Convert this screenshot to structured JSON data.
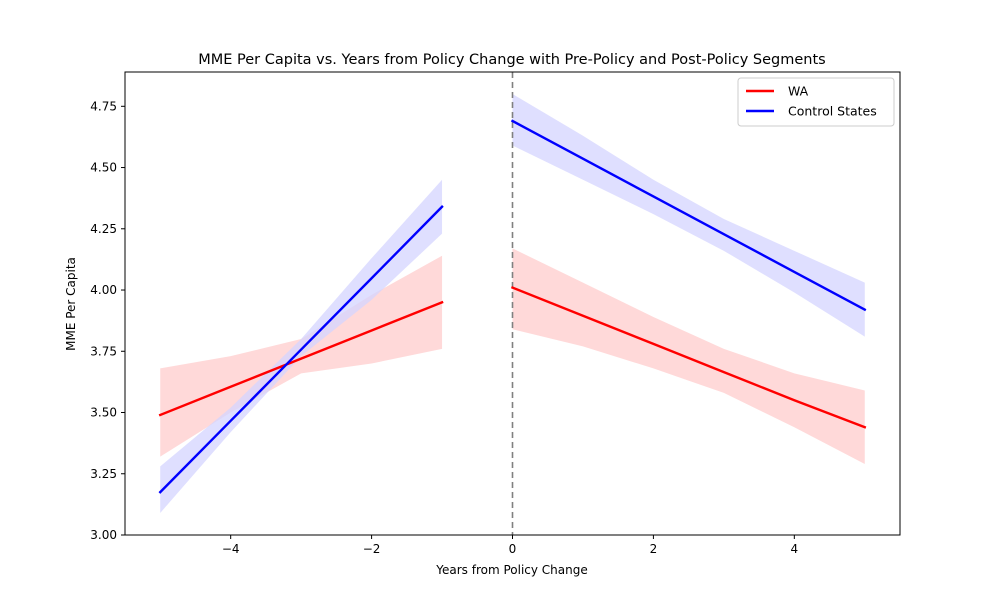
{
  "chart_data": {
    "type": "line",
    "title": "MME Per Capita vs. Years from Policy Change with Pre-Policy and Post-Policy Segments",
    "xlabel": "Years from Policy Change",
    "ylabel": "MME Per Capita",
    "xlim": [
      -5.5,
      5.5
    ],
    "ylim": [
      3.0,
      4.89
    ],
    "xticks": [
      -4,
      -2,
      0,
      2,
      4
    ],
    "xtick_labels": [
      "−4",
      "−2",
      "0",
      "2",
      "4"
    ],
    "yticks": [
      3.0,
      3.25,
      3.5,
      3.75,
      4.0,
      4.25,
      4.5,
      4.75
    ],
    "ytick_labels": [
      "3.00",
      "3.25",
      "3.50",
      "3.75",
      "4.00",
      "4.25",
      "4.50",
      "4.75"
    ],
    "grid": false,
    "legend_position": "top-right",
    "policy_line_x": 0,
    "series": [
      {
        "name": "WA",
        "color": "#ff0000",
        "band_color": "#ffcccc",
        "segments": [
          {
            "label": "pre-policy",
            "x": [
              -5,
              -4,
              -3,
              -2,
              -1
            ],
            "y": [
              3.49,
              3.605,
              3.72,
              3.835,
              3.95
            ],
            "lower": [
              3.32,
              3.5,
              3.66,
              3.7,
              3.76
            ],
            "upper": [
              3.68,
              3.73,
              3.8,
              3.98,
              4.14
            ]
          },
          {
            "label": "post-policy",
            "x": [
              0,
              1,
              2,
              3,
              4,
              5
            ],
            "y": [
              4.01,
              3.895,
              3.78,
              3.665,
              3.55,
              3.44
            ],
            "lower": [
              3.84,
              3.77,
              3.68,
              3.58,
              3.44,
              3.29
            ],
            "upper": [
              4.17,
              4.03,
              3.89,
              3.76,
              3.66,
              3.59
            ]
          }
        ]
      },
      {
        "name": "Control States",
        "color": "#0000ff",
        "band_color": "#d4d4ff",
        "segments": [
          {
            "label": "pre-policy",
            "x": [
              -5,
              -4,
              -3,
              -2,
              -1
            ],
            "y": [
              3.175,
              3.466,
              3.757,
              4.048,
              4.34
            ],
            "lower": [
              3.09,
              3.42,
              3.73,
              3.96,
              4.23
            ],
            "upper": [
              3.28,
              3.52,
              3.8,
              4.13,
              4.45
            ]
          },
          {
            "label": "post-policy",
            "x": [
              0,
              1,
              2,
              3,
              4,
              5
            ],
            "y": [
              4.69,
              4.536,
              4.382,
              4.228,
              4.074,
              3.92
            ],
            "lower": [
              4.59,
              4.45,
              4.31,
              4.16,
              3.99,
              3.81
            ],
            "upper": [
              4.8,
              4.63,
              4.45,
              4.29,
              4.16,
              4.03
            ]
          }
        ]
      }
    ]
  }
}
